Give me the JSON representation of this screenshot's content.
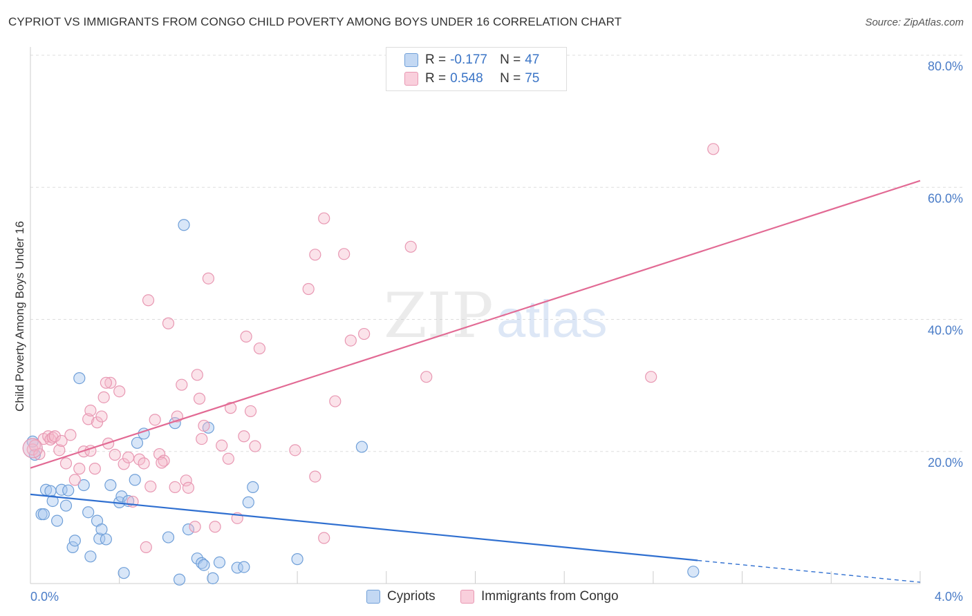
{
  "title": "CYPRIOT VS IMMIGRANTS FROM CONGO CHILD POVERTY AMONG BOYS UNDER 16 CORRELATION CHART",
  "source": "Source: ZipAtlas.com",
  "watermark": {
    "zip": "ZIP",
    "atlas": "atlas"
  },
  "colors": {
    "blue_fill": "#a9c8ef",
    "blue_stroke": "#6f9fd8",
    "blue_line": "#2f6fd0",
    "pink_fill": "#f6b8cb",
    "pink_stroke": "#e897b2",
    "pink_line": "#e26a94",
    "grid": "#dddddd",
    "tick_text": "#4a7cc7"
  },
  "legend": {
    "rows": [
      {
        "r_label": "R =",
        "r_value": "-0.177",
        "n_label": "N =",
        "n_value": "47"
      },
      {
        "r_label": "R =",
        "r_value": "0.548",
        "n_label": "N =",
        "n_value": "75"
      }
    ]
  },
  "bottom_legend": {
    "series1": "Cypriots",
    "series2": "Immigrants from Congo"
  },
  "chart_data": {
    "type": "scatter",
    "title": "CYPRIOT VS IMMIGRANTS FROM CONGO CHILD POVERTY AMONG BOYS UNDER 16 CORRELATION CHART",
    "xlabel": "",
    "ylabel": "Child Poverty Among Boys Under 16",
    "xlim": [
      0,
      4.0
    ],
    "ylim": [
      0,
      80
    ],
    "x_tick_labels": [
      "0.0%",
      "4.0%"
    ],
    "y_ticks": [
      20,
      40,
      60,
      80
    ],
    "y_tick_labels": [
      "20.0%",
      "40.0%",
      "60.0%",
      "80.0%"
    ],
    "grid": true,
    "series": [
      {
        "name": "Cypriots",
        "r": -0.177,
        "n": 47,
        "trend": {
          "x": [
            0,
            3.0
          ],
          "y": [
            13.5,
            3.5
          ]
        },
        "trend_dashed": {
          "x": [
            3.0,
            4.0
          ],
          "y": [
            3.5,
            0.2
          ]
        },
        "points": [
          [
            0.01,
            21.5
          ],
          [
            0.02,
            19.5
          ],
          [
            0.05,
            10.5
          ],
          [
            0.06,
            10.5
          ],
          [
            0.07,
            14.2
          ],
          [
            0.09,
            14
          ],
          [
            0.1,
            12.5
          ],
          [
            0.12,
            9.5
          ],
          [
            0.14,
            14.2
          ],
          [
            0.16,
            11.8
          ],
          [
            0.17,
            14.1
          ],
          [
            0.19,
            5.5
          ],
          [
            0.2,
            6.5
          ],
          [
            0.22,
            31.1
          ],
          [
            0.24,
            14.9
          ],
          [
            0.26,
            10.8
          ],
          [
            0.27,
            4.1
          ],
          [
            0.3,
            9.5
          ],
          [
            0.31,
            6.8
          ],
          [
            0.32,
            8.2
          ],
          [
            0.34,
            6.7
          ],
          [
            0.36,
            14.9
          ],
          [
            0.4,
            12.3
          ],
          [
            0.41,
            13.2
          ],
          [
            0.42,
            1.6
          ],
          [
            0.47,
            15.7
          ],
          [
            0.48,
            21.3
          ],
          [
            0.51,
            22.7
          ],
          [
            0.62,
            7
          ],
          [
            0.65,
            24.3
          ],
          [
            0.67,
            0.6
          ],
          [
            0.69,
            54.3
          ],
          [
            0.71,
            8.2
          ],
          [
            0.75,
            3.8
          ],
          [
            0.77,
            3.1
          ],
          [
            0.78,
            2.8
          ],
          [
            0.8,
            23.6
          ],
          [
            0.82,
            0.8
          ],
          [
            0.85,
            3.2
          ],
          [
            0.93,
            2.4
          ],
          [
            0.96,
            2.5
          ],
          [
            0.98,
            12.3
          ],
          [
            1.0,
            14.6
          ],
          [
            1.2,
            3.7
          ],
          [
            1.49,
            20.7
          ],
          [
            2.98,
            1.8
          ],
          [
            0.44,
            12.5
          ]
        ]
      },
      {
        "name": "Immigrants from Congo",
        "r": 0.548,
        "n": 75,
        "trend": {
          "x": [
            0,
            4.0
          ],
          "y": [
            17.5,
            61.0
          ]
        },
        "points": [
          [
            0.01,
            20.3
          ],
          [
            0.02,
            20.9
          ],
          [
            0.04,
            19.6
          ],
          [
            0.06,
            21.9
          ],
          [
            0.08,
            22.3
          ],
          [
            0.09,
            21.8
          ],
          [
            0.1,
            22.1
          ],
          [
            0.11,
            22.3
          ],
          [
            0.13,
            20.2
          ],
          [
            0.14,
            21.6
          ],
          [
            0.16,
            18.2
          ],
          [
            0.18,
            22.5
          ],
          [
            0.2,
            15.7
          ],
          [
            0.22,
            17.4
          ],
          [
            0.24,
            20
          ],
          [
            0.26,
            24.9
          ],
          [
            0.27,
            26.2
          ],
          [
            0.29,
            17.4
          ],
          [
            0.3,
            24.4
          ],
          [
            0.32,
            25.3
          ],
          [
            0.33,
            28.2
          ],
          [
            0.35,
            21.2
          ],
          [
            0.36,
            30.4
          ],
          [
            0.38,
            19.5
          ],
          [
            0.4,
            29.1
          ],
          [
            0.42,
            18.1
          ],
          [
            0.44,
            19.1
          ],
          [
            0.46,
            12.4
          ],
          [
            0.49,
            18.8
          ],
          [
            0.51,
            18.2
          ],
          [
            0.52,
            5.5
          ],
          [
            0.53,
            42.9
          ],
          [
            0.54,
            14.7
          ],
          [
            0.56,
            24.8
          ],
          [
            0.58,
            19.6
          ],
          [
            0.6,
            18.6
          ],
          [
            0.62,
            39.4
          ],
          [
            0.65,
            14.6
          ],
          [
            0.66,
            25.3
          ],
          [
            0.68,
            30.1
          ],
          [
            0.7,
            15.6
          ],
          [
            0.71,
            14.5
          ],
          [
            0.74,
            8.6
          ],
          [
            0.75,
            31.6
          ],
          [
            0.76,
            28
          ],
          [
            0.77,
            21.9
          ],
          [
            0.78,
            23.9
          ],
          [
            0.8,
            46.2
          ],
          [
            0.83,
            8.6
          ],
          [
            0.86,
            20.9
          ],
          [
            0.89,
            18.9
          ],
          [
            0.9,
            26.6
          ],
          [
            0.93,
            9.9
          ],
          [
            0.96,
            22.3
          ],
          [
            0.97,
            37.4
          ],
          [
            0.99,
            26.1
          ],
          [
            1.01,
            20.8
          ],
          [
            1.03,
            35.6
          ],
          [
            1.19,
            20.2
          ],
          [
            1.25,
            44.6
          ],
          [
            1.28,
            16.2
          ],
          [
            1.28,
            49.8
          ],
          [
            1.32,
            6.9
          ],
          [
            1.32,
            55.3
          ],
          [
            1.37,
            27.6
          ],
          [
            1.41,
            49.9
          ],
          [
            1.44,
            36.8
          ],
          [
            1.5,
            37.8
          ],
          [
            1.71,
            51
          ],
          [
            1.78,
            31.3
          ],
          [
            2.79,
            31.3
          ],
          [
            3.07,
            65.8
          ],
          [
            0.59,
            18.3
          ],
          [
            0.27,
            20.1
          ],
          [
            0.34,
            30.4
          ]
        ]
      }
    ]
  },
  "y_axis_label": "Child Poverty Among Boys Under 16"
}
